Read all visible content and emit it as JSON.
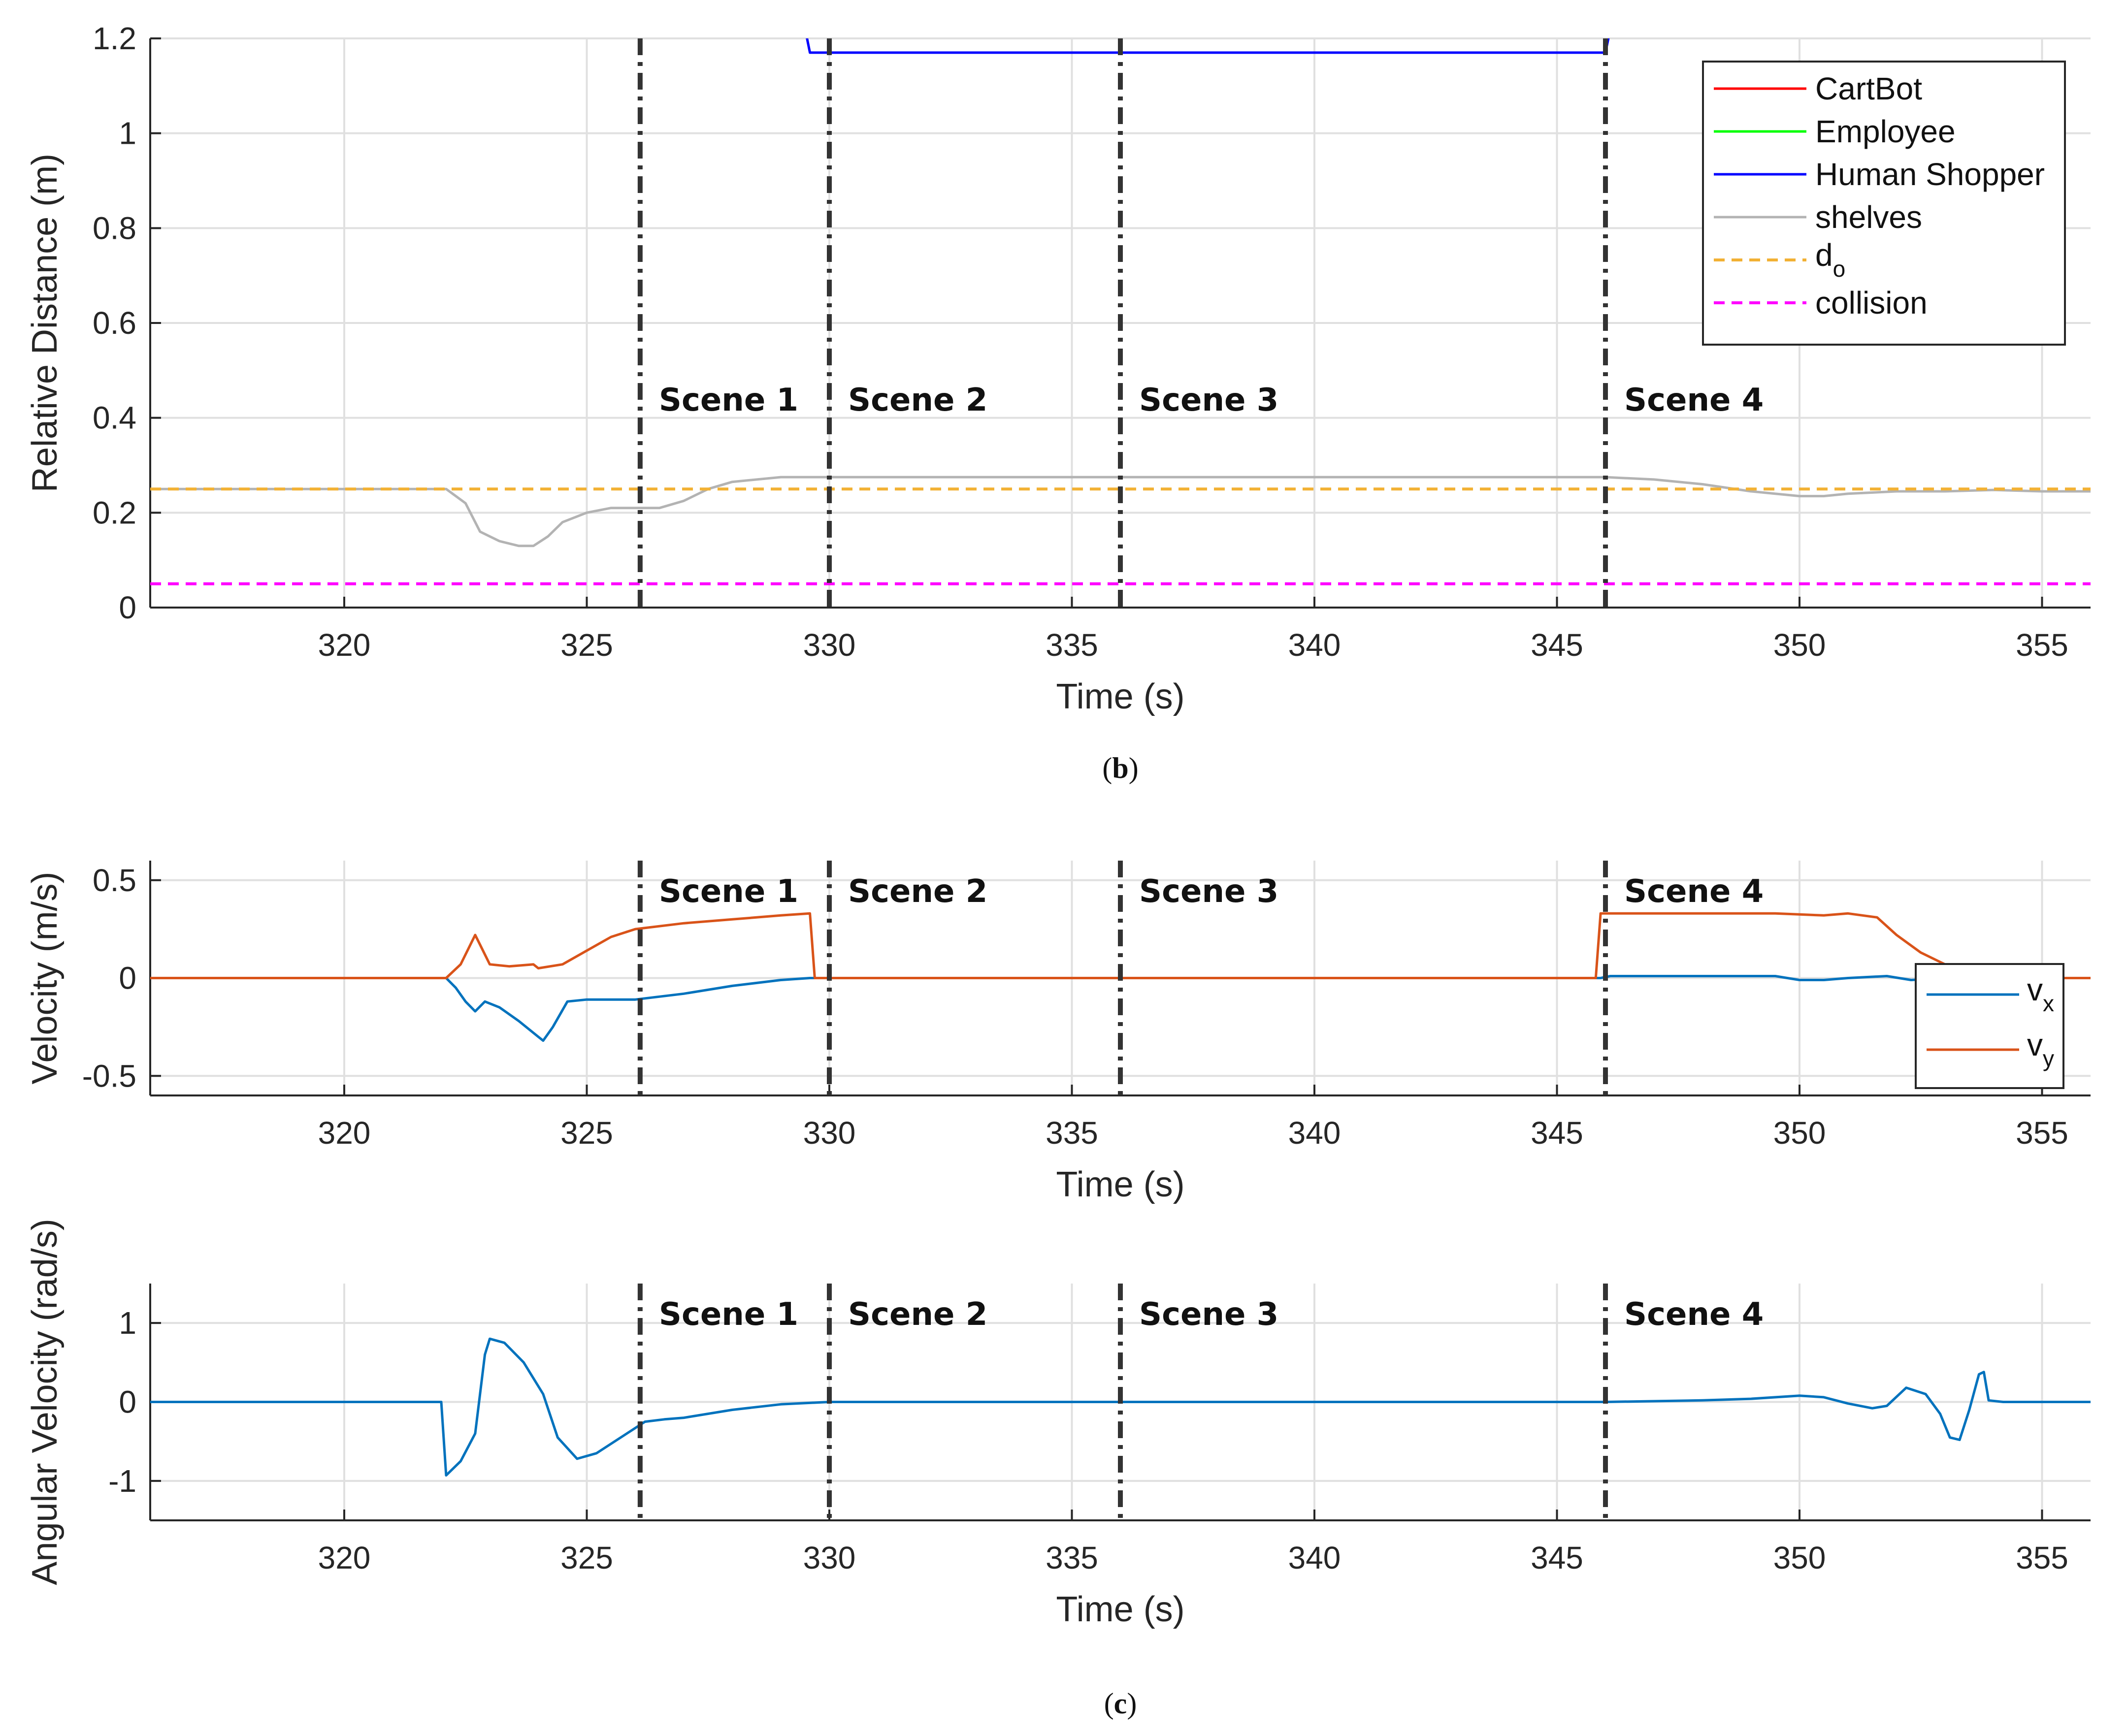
{
  "chart_data": [
    {
      "type": "line",
      "panel": "b",
      "caption_letter": "b",
      "xlabel": "Time (s)",
      "ylabel": "Relative Distance (m)",
      "xlim": [
        316,
        356
      ],
      "ylim": [
        0,
        1.2
      ],
      "xticks": [
        320,
        325,
        330,
        335,
        340,
        345,
        350,
        355
      ],
      "yticks": [
        0,
        0.2,
        0.4,
        0.6,
        0.8,
        1,
        1.2
      ],
      "ytick_labels": [
        "0",
        "0.2",
        "0.4",
        "0.6",
        "0.8",
        "1",
        "1.2"
      ],
      "grid": true,
      "legend_position": "top-right",
      "scene_lines": [
        {
          "x": 326.1,
          "label": "Scene 1"
        },
        {
          "x": 330.0,
          "label": "Scene 2"
        },
        {
          "x": 336.0,
          "label": "Scene 3"
        },
        {
          "x": 346.0,
          "label": "Scene 4"
        }
      ],
      "series": [
        {
          "name": "CartBot",
          "color": "#ff0000",
          "style": "solid",
          "x": [],
          "y": []
        },
        {
          "name": "Employee",
          "color": "#00ff00",
          "style": "solid",
          "x": [],
          "y": []
        },
        {
          "name": "Human Shopper",
          "color": "#0000ff",
          "style": "solid",
          "x": [
            329.5,
            329.6,
            346.0,
            346.1
          ],
          "y": [
            1.22,
            1.17,
            1.17,
            1.22
          ]
        },
        {
          "name": "shelves",
          "color": "#b3b3b3",
          "style": "solid",
          "x": [
            316,
            322.1,
            322.5,
            322.8,
            323.2,
            323.6,
            323.9,
            324.2,
            324.5,
            325.0,
            325.5,
            326.0,
            326.5,
            327.0,
            327.5,
            328.0,
            329.0,
            330.0,
            335.0,
            340.0,
            345.0,
            346.0,
            347.0,
            348.0,
            349.0,
            350.0,
            350.5,
            351.0,
            352.0,
            353.0,
            354.0,
            355.0,
            356.0
          ],
          "y": [
            0.25,
            0.25,
            0.22,
            0.16,
            0.14,
            0.13,
            0.13,
            0.15,
            0.18,
            0.2,
            0.21,
            0.21,
            0.21,
            0.225,
            0.25,
            0.265,
            0.275,
            0.275,
            0.275,
            0.275,
            0.275,
            0.275,
            0.27,
            0.26,
            0.245,
            0.235,
            0.235,
            0.24,
            0.245,
            0.245,
            0.248,
            0.245,
            0.245
          ]
        },
        {
          "name": "d_o",
          "legend_main": "d",
          "legend_sub": "o",
          "color": "#f2b134",
          "style": "dashed",
          "x": [
            316,
            356
          ],
          "y": [
            0.25,
            0.25
          ]
        },
        {
          "name": "collision",
          "color": "#ff00ff",
          "style": "dashed",
          "x": [
            316,
            356
          ],
          "y": [
            0.05,
            0.05
          ]
        }
      ]
    },
    {
      "type": "line",
      "panel": "c-top",
      "xlabel": "Time (s)",
      "ylabel": "Velocity (m/s)",
      "xlim": [
        316,
        356
      ],
      "ylim": [
        -0.6,
        0.6
      ],
      "xticks": [
        320,
        325,
        330,
        335,
        340,
        345,
        350,
        355
      ],
      "yticks": [
        -0.5,
        0,
        0.5
      ],
      "ytick_labels": [
        "-0.5",
        "0",
        "0.5"
      ],
      "grid": true,
      "legend_position": "right",
      "scene_lines": [
        {
          "x": 326.1,
          "label": "Scene 1"
        },
        {
          "x": 330.0,
          "label": "Scene 2"
        },
        {
          "x": 336.0,
          "label": "Scene 3"
        },
        {
          "x": 346.0,
          "label": "Scene 4"
        }
      ],
      "series": [
        {
          "name": "v_x",
          "legend_main": "v",
          "legend_sub": "x",
          "color": "#0072bd",
          "style": "solid",
          "x": [
            316,
            322.1,
            322.3,
            322.5,
            322.7,
            322.9,
            323.2,
            323.6,
            324.0,
            324.1,
            324.3,
            324.6,
            325.0,
            326.0,
            327.0,
            328.0,
            329.0,
            329.6,
            330.0,
            335.0,
            340.0,
            345.0,
            345.9,
            346.1,
            348.0,
            349.5,
            350.0,
            350.5,
            351.0,
            351.8,
            352.3,
            353.0,
            354.0,
            356.0
          ],
          "y": [
            0,
            0,
            -0.05,
            -0.12,
            -0.17,
            -0.12,
            -0.15,
            -0.22,
            -0.3,
            -0.32,
            -0.25,
            -0.12,
            -0.11,
            -0.11,
            -0.08,
            -0.04,
            -0.01,
            0,
            0,
            0,
            0,
            0,
            0,
            0.01,
            0.01,
            0.01,
            -0.01,
            -0.01,
            0,
            0.01,
            -0.01,
            0,
            0,
            0
          ]
        },
        {
          "name": "v_y",
          "legend_main": "v",
          "legend_sub": "y",
          "color": "#d95319",
          "style": "solid",
          "x": [
            316,
            322.1,
            322.4,
            322.7,
            322.8,
            323.0,
            323.4,
            323.9,
            324.0,
            324.5,
            325.0,
            325.5,
            326.0,
            327.0,
            328.0,
            329.0,
            329.6,
            329.7,
            330.0,
            335.0,
            340.0,
            345.0,
            345.8,
            345.9,
            346.5,
            348.0,
            349.5,
            350.5,
            351.0,
            351.6,
            352.0,
            352.5,
            353.0,
            353.5,
            354.5,
            356.0
          ],
          "y": [
            0,
            0,
            0.07,
            0.22,
            0.17,
            0.07,
            0.06,
            0.07,
            0.05,
            0.07,
            0.14,
            0.21,
            0.25,
            0.28,
            0.3,
            0.32,
            0.33,
            0,
            0,
            0,
            0,
            0,
            0,
            0.33,
            0.33,
            0.33,
            0.33,
            0.32,
            0.33,
            0.31,
            0.22,
            0.13,
            0.07,
            0.03,
            0,
            0
          ]
        }
      ]
    },
    {
      "type": "line",
      "panel": "c-bottom",
      "caption_letter": "c",
      "xlabel": "Time (s)",
      "ylabel": "Angular Velocity (rad/s)",
      "xlim": [
        316,
        356
      ],
      "ylim": [
        -1.5,
        1.5
      ],
      "xticks": [
        320,
        325,
        330,
        335,
        340,
        345,
        350,
        355
      ],
      "yticks": [
        -1,
        0,
        1
      ],
      "ytick_labels": [
        "-1",
        "0",
        "1"
      ],
      "grid": true,
      "scene_lines": [
        {
          "x": 326.1,
          "label": "Scene 1"
        },
        {
          "x": 330.0,
          "label": "Scene 2"
        },
        {
          "x": 336.0,
          "label": "Scene 3"
        },
        {
          "x": 346.0,
          "label": "Scene 4"
        }
      ],
      "series": [
        {
          "name": "angular velocity",
          "color": "#0072bd",
          "style": "solid",
          "x": [
            316,
            322.0,
            322.1,
            322.4,
            322.7,
            322.9,
            323.0,
            323.3,
            323.7,
            324.1,
            324.4,
            324.8,
            325.2,
            325.7,
            326.2,
            326.6,
            327.0,
            328.0,
            329.0,
            330.0,
            335.0,
            340.0,
            345.0,
            346.0,
            348.0,
            349.0,
            350.0,
            350.5,
            351.0,
            351.5,
            351.8,
            352.2,
            352.6,
            352.9,
            353.1,
            353.3,
            353.5,
            353.7,
            353.8,
            353.9,
            354.2,
            356.0
          ],
          "y": [
            0,
            0,
            -0.93,
            -0.75,
            -0.4,
            0.6,
            0.8,
            0.75,
            0.5,
            0.1,
            -0.45,
            -0.72,
            -0.65,
            -0.45,
            -0.25,
            -0.22,
            -0.2,
            -0.1,
            -0.03,
            0,
            0,
            0,
            0,
            0,
            0.02,
            0.04,
            0.08,
            0.06,
            -0.02,
            -0.08,
            -0.05,
            0.18,
            0.1,
            -0.15,
            -0.45,
            -0.48,
            -0.1,
            0.35,
            0.38,
            0.02,
            0,
            0
          ]
        }
      ]
    }
  ]
}
